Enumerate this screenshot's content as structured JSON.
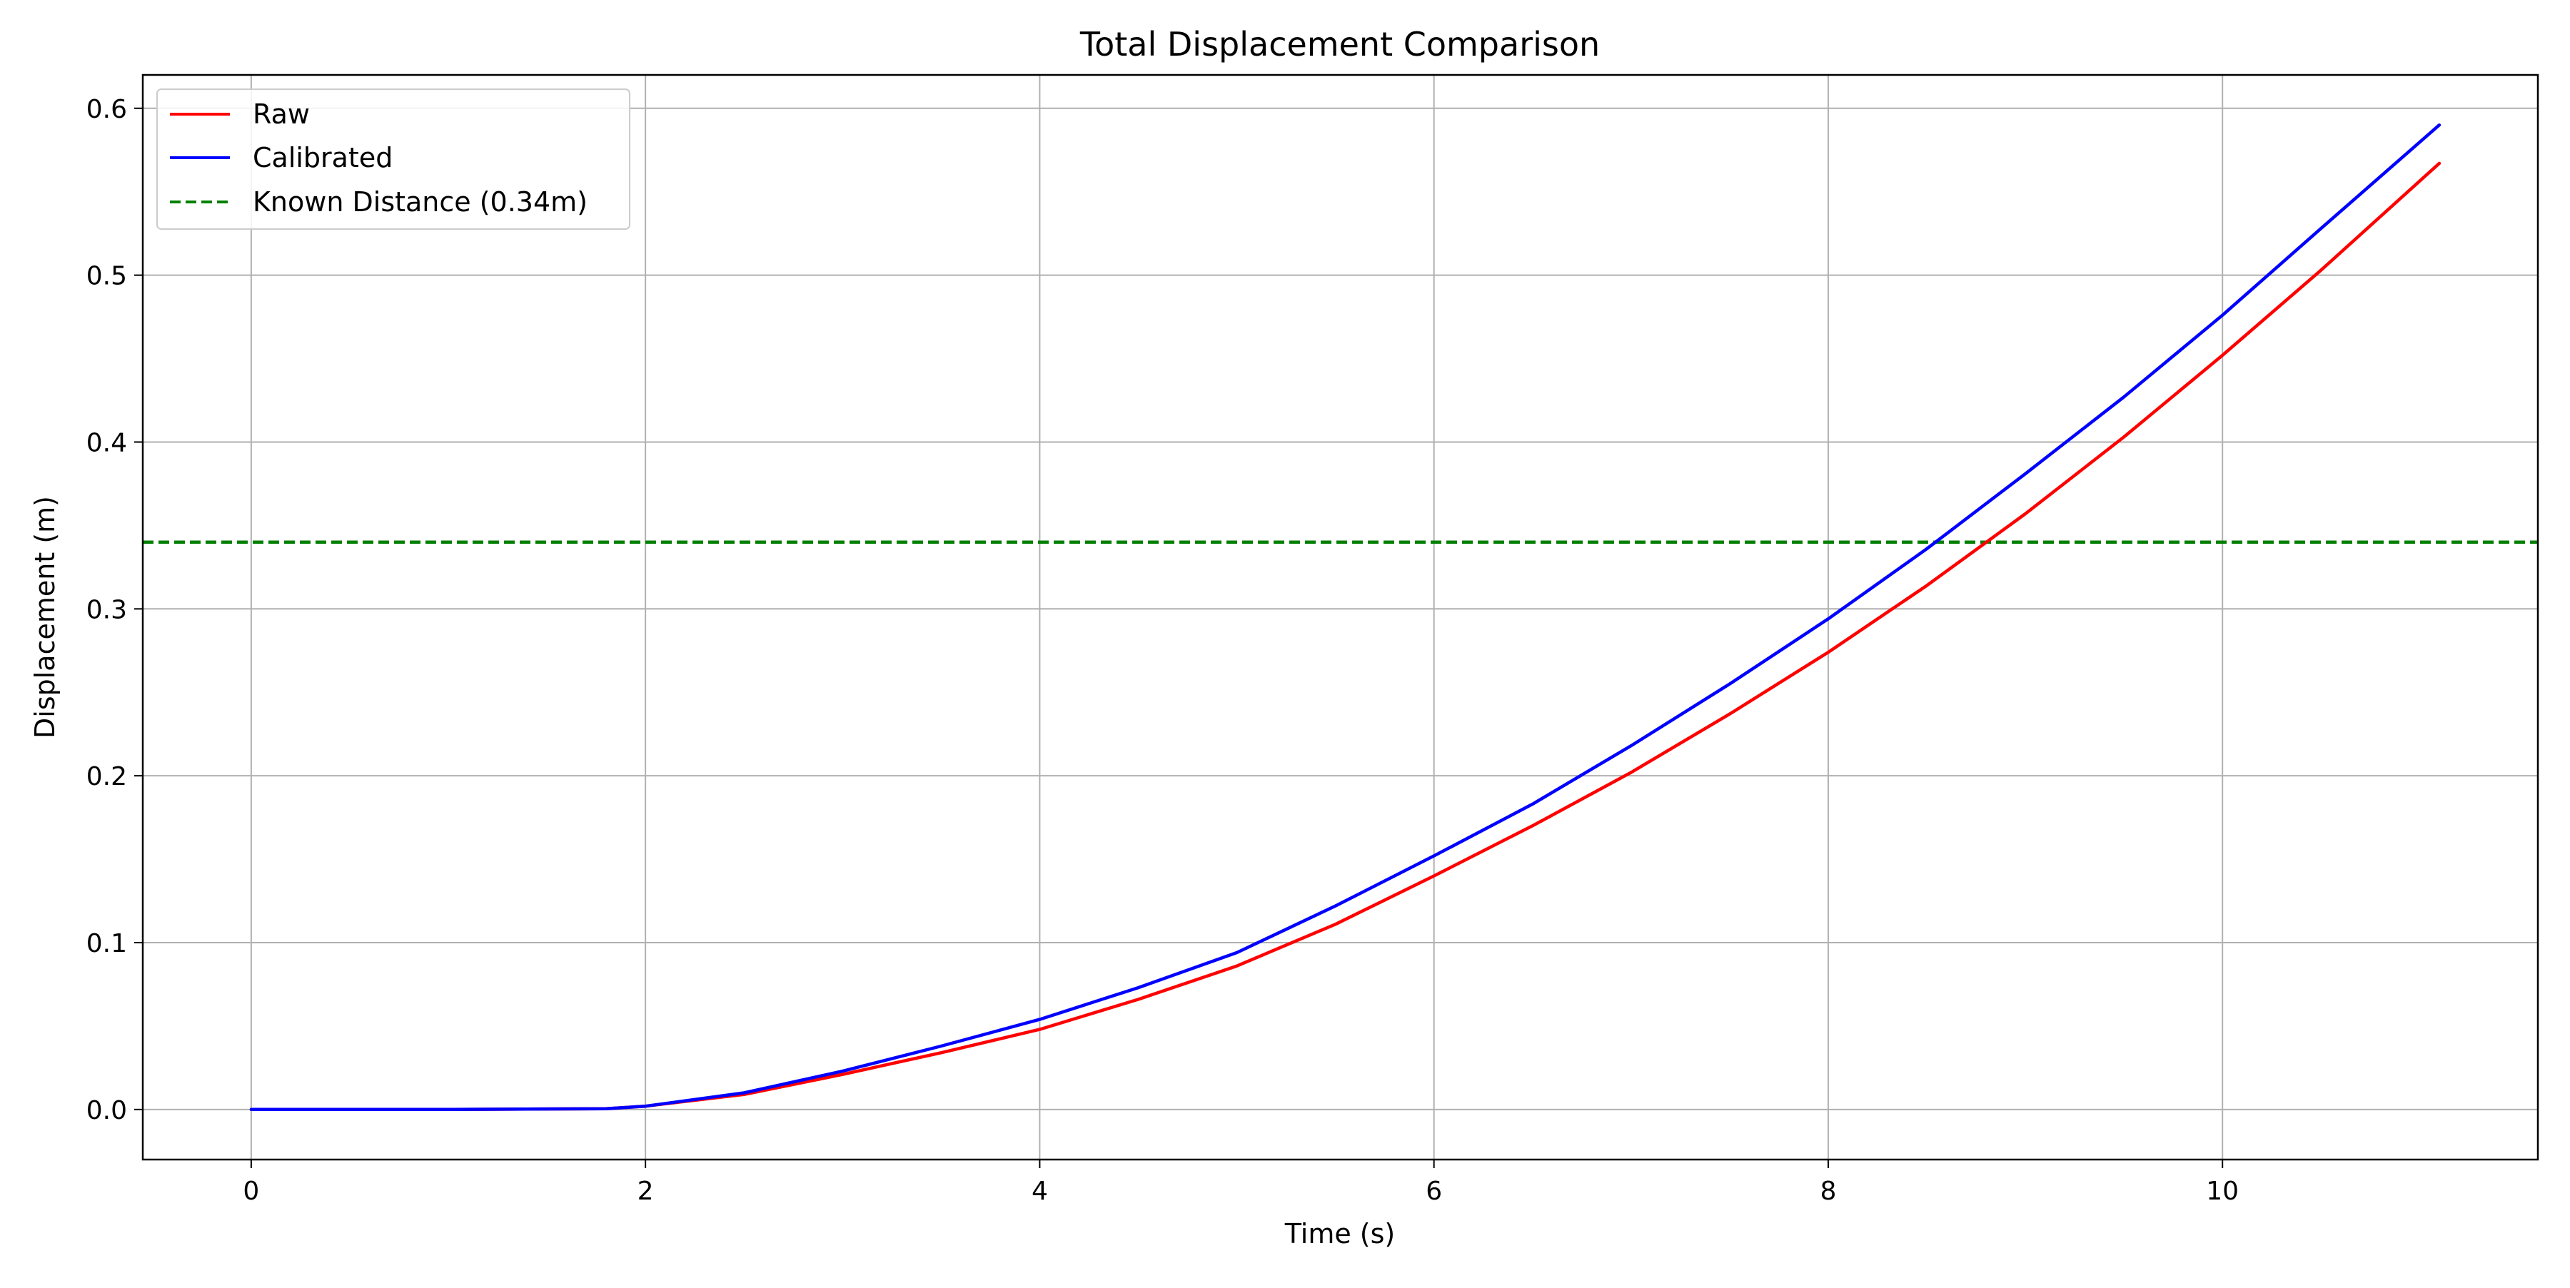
{
  "chart_data": {
    "type": "line",
    "title": "Total Displacement Comparison",
    "xlabel": "Time (s)",
    "ylabel": "Displacement (m)",
    "xlim": [
      -0.55,
      11.6
    ],
    "ylim": [
      -0.03,
      0.62
    ],
    "xticks": [
      0,
      2,
      4,
      6,
      8,
      10
    ],
    "yticks": [
      0.0,
      0.1,
      0.2,
      0.3,
      0.4,
      0.5,
      0.6
    ],
    "grid": true,
    "legend_position": "top-left",
    "series": [
      {
        "name": "Raw",
        "color": "#ff0000",
        "style": "solid",
        "x": [
          0,
          1.0,
          1.8,
          2.0,
          2.5,
          3.0,
          3.5,
          4.0,
          4.5,
          5.0,
          5.5,
          6.0,
          6.5,
          7.0,
          7.5,
          8.0,
          8.5,
          9.0,
          9.5,
          10.0,
          10.5,
          11.1
        ],
        "y": [
          0.0,
          0.0,
          0.0005,
          0.002,
          0.009,
          0.021,
          0.034,
          0.048,
          0.066,
          0.086,
          0.111,
          0.14,
          0.17,
          0.202,
          0.237,
          0.274,
          0.314,
          0.357,
          0.403,
          0.452,
          0.503,
          0.567
        ]
      },
      {
        "name": "Calibrated",
        "color": "#0000ff",
        "style": "solid",
        "x": [
          0,
          1.0,
          1.8,
          2.0,
          2.5,
          3.0,
          3.5,
          4.0,
          4.5,
          5.0,
          5.5,
          6.0,
          6.5,
          7.0,
          7.5,
          8.0,
          8.5,
          9.0,
          9.5,
          10.0,
          10.5,
          11.1
        ],
        "y": [
          0.0,
          0.0,
          0.0005,
          0.002,
          0.01,
          0.023,
          0.038,
          0.054,
          0.073,
          0.094,
          0.122,
          0.152,
          0.183,
          0.218,
          0.255,
          0.294,
          0.336,
          0.381,
          0.427,
          0.476,
          0.528,
          0.59
        ]
      },
      {
        "name": "Known Distance (0.34m)",
        "color": "#008000",
        "style": "dashed",
        "y_constant": 0.34
      }
    ]
  }
}
